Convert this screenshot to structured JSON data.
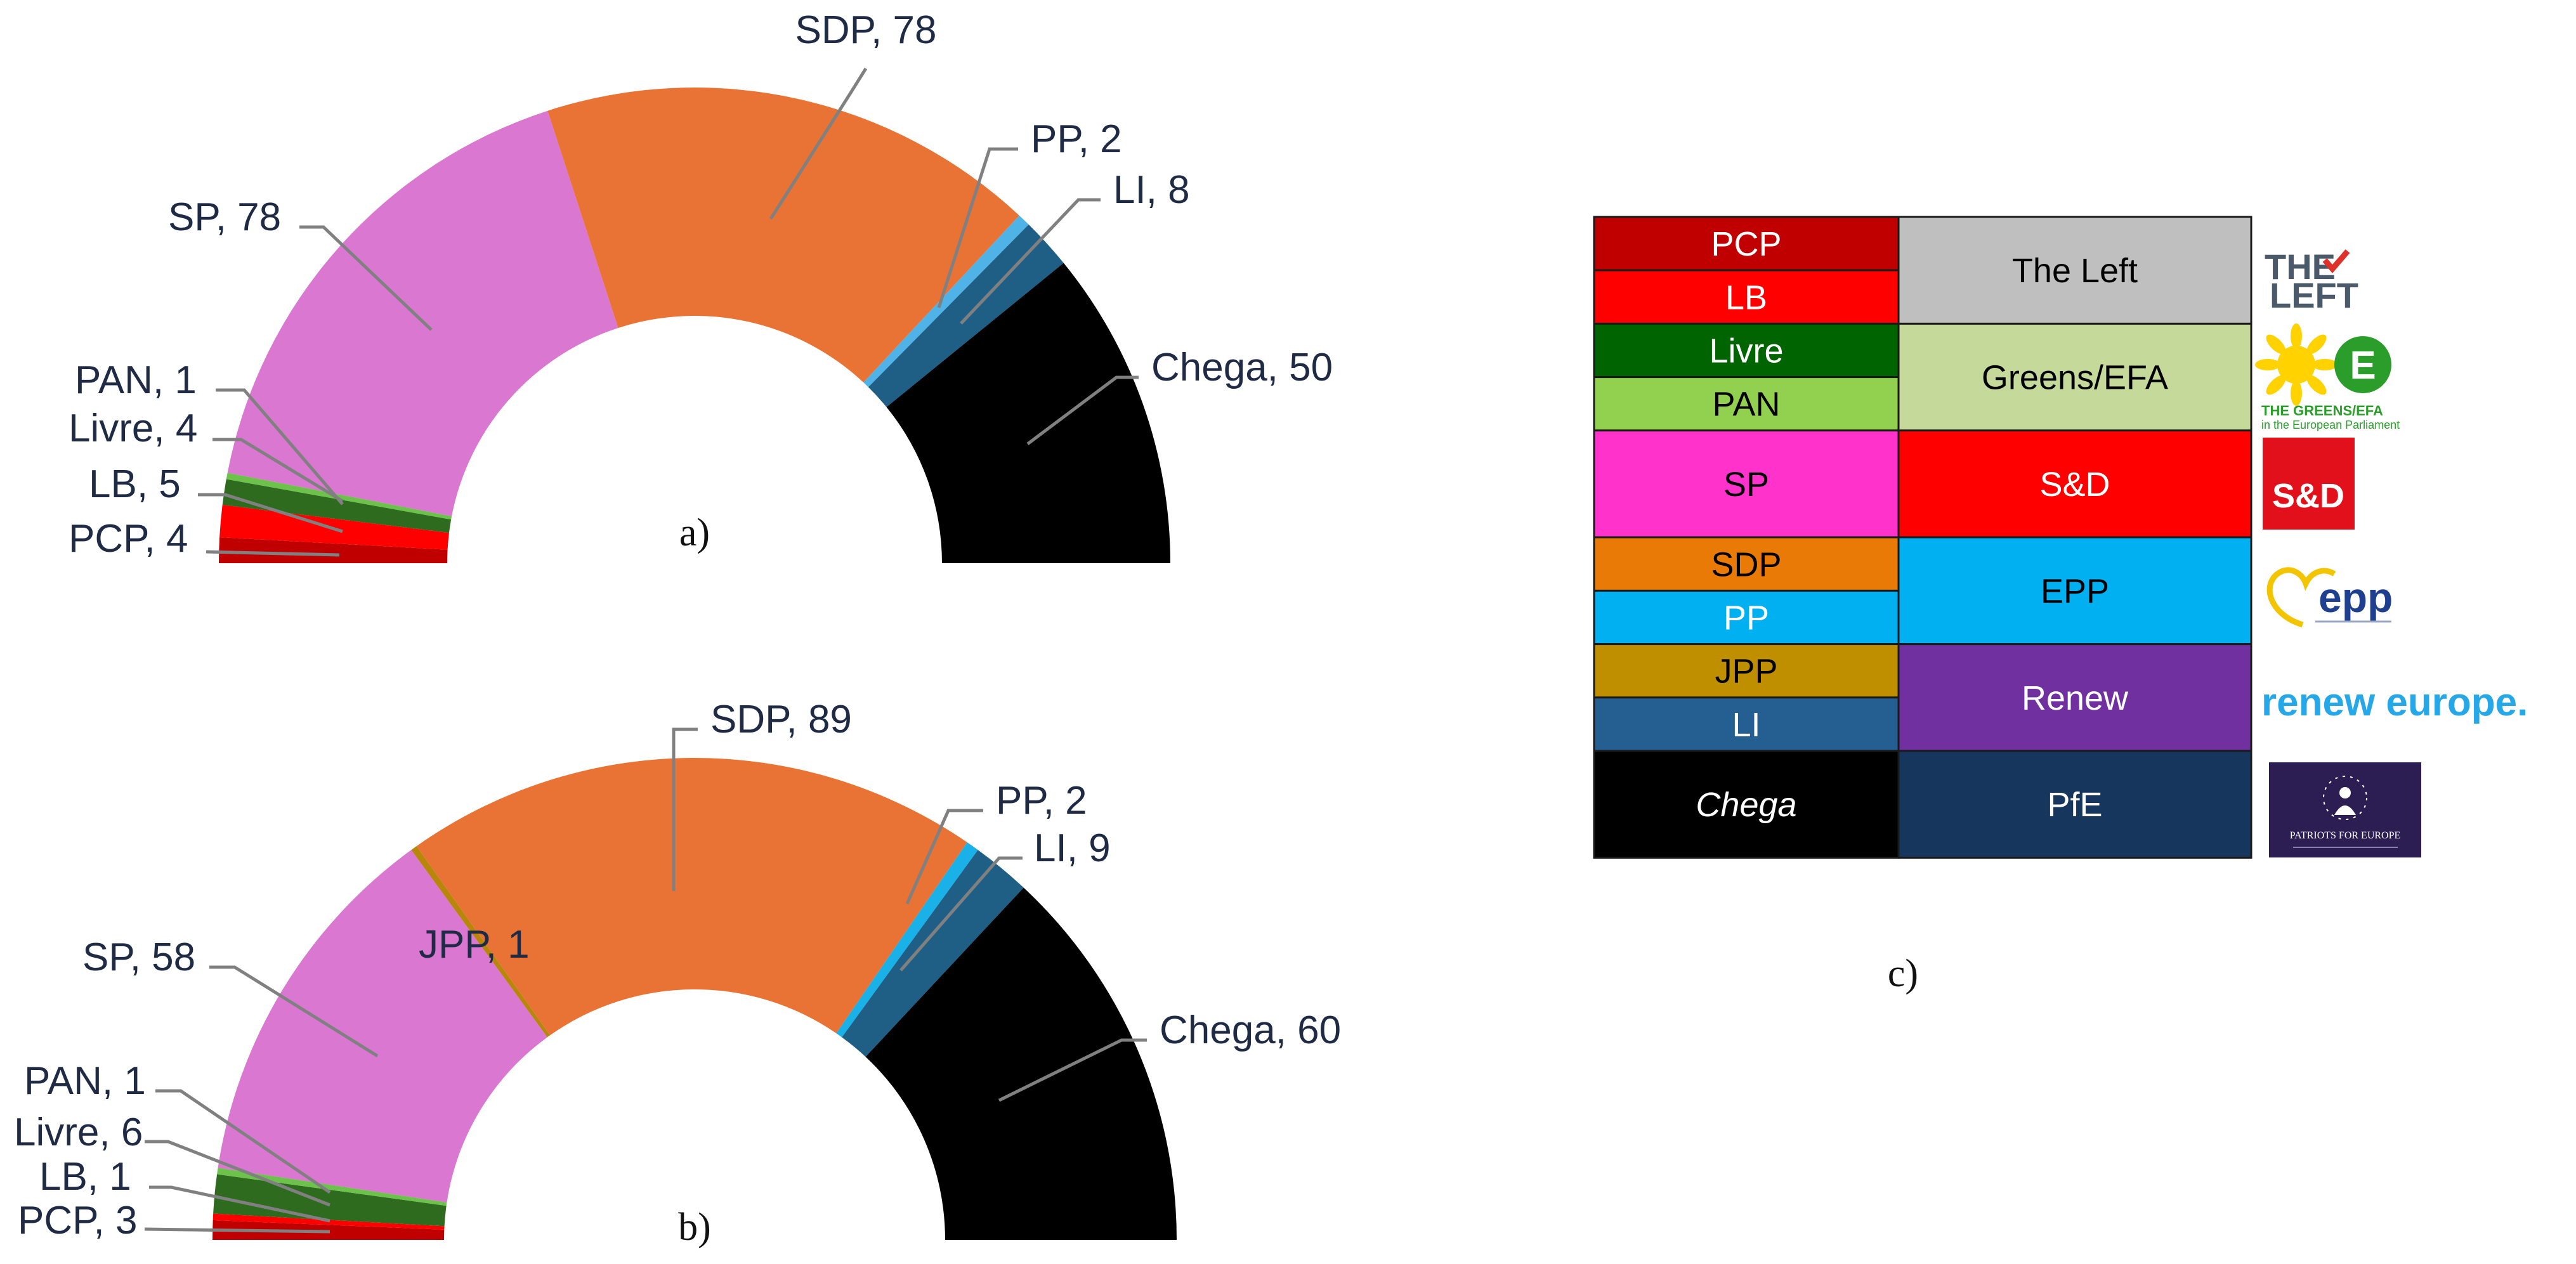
{
  "chart_data": [
    {
      "type": "pie",
      "variant": "half-donut",
      "panel_label": "a)",
      "slices": [
        {
          "name": "PCP",
          "value": 4,
          "color": "#c00000",
          "label": "PCP, 4"
        },
        {
          "name": "LB",
          "value": 5,
          "color": "#ff0000",
          "label": "LB, 5"
        },
        {
          "name": "Livre",
          "value": 4,
          "color": "#2e6b1f",
          "label": "Livre, 4"
        },
        {
          "name": "PAN",
          "value": 1,
          "color": "#6cc24a",
          "label": "PAN, 1"
        },
        {
          "name": "SP",
          "value": 78,
          "color": "#da77d0",
          "label": "SP, 78"
        },
        {
          "name": "SDP",
          "value": 78,
          "color": "#e97334",
          "label": "SDP, 78"
        },
        {
          "name": "PP",
          "value": 2,
          "color": "#4fb3e8",
          "label": "PP, 2"
        },
        {
          "name": "LI",
          "value": 8,
          "color": "#1f5f86",
          "label": "LI, 8"
        },
        {
          "name": "Chega",
          "value": 50,
          "color": "#000000",
          "label": "Chega, 50"
        }
      ]
    },
    {
      "type": "pie",
      "variant": "half-donut",
      "panel_label": "b)",
      "slices": [
        {
          "name": "PCP",
          "value": 3,
          "color": "#c00000",
          "label": "PCP, 3"
        },
        {
          "name": "LB",
          "value": 1,
          "color": "#ff0000",
          "label": "LB, 1"
        },
        {
          "name": "Livre",
          "value": 6,
          "color": "#2e6b1f",
          "label": "Livre, 6"
        },
        {
          "name": "PAN",
          "value": 1,
          "color": "#6cc24a",
          "label": "PAN, 1"
        },
        {
          "name": "SP",
          "value": 58,
          "color": "#da77d0",
          "label": "SP, 58"
        },
        {
          "name": "JPP",
          "value": 1,
          "color": "#b8860b",
          "label": "JPP, 1"
        },
        {
          "name": "SDP",
          "value": 89,
          "color": "#e97334",
          "label": "SDP, 89"
        },
        {
          "name": "PP",
          "value": 2,
          "color": "#1ab0e8",
          "label": "PP, 2"
        },
        {
          "name": "LI",
          "value": 9,
          "color": "#1f5f86",
          "label": "LI, 9"
        },
        {
          "name": "Chega",
          "value": 60,
          "color": "#000000",
          "label": "Chega, 60"
        }
      ]
    }
  ],
  "mapping_table": {
    "panel_label": "c)",
    "parties": [
      {
        "name": "PCP",
        "bg": "#c00000",
        "fg": "#ffffff"
      },
      {
        "name": "LB",
        "bg": "#ff0000",
        "fg": "#ffffff"
      },
      {
        "name": "Livre",
        "bg": "#006400",
        "fg": "#ffffff"
      },
      {
        "name": "PAN",
        "bg": "#92d050",
        "fg": "#000000"
      },
      {
        "name": "SP",
        "bg": "#ff33cc",
        "fg": "#000000"
      },
      {
        "name": "SDP",
        "bg": "#e97a06",
        "fg": "#000000"
      },
      {
        "name": "PP",
        "bg": "#00b0f0",
        "fg": "#ffffff"
      },
      {
        "name": "JPP",
        "bg": "#bf8f00",
        "fg": "#000000"
      },
      {
        "name": "LI",
        "bg": "#255e91",
        "fg": "#ffffff"
      },
      {
        "name": "Chega",
        "bg": "#000000",
        "fg": "#ffffff",
        "italic": true
      }
    ],
    "groups": [
      {
        "name": "The Left",
        "bg": "#bfbfbf",
        "fg": "#000000",
        "logo": "the-left-logo",
        "logo_text": [
          "THE",
          "LEFT"
        ]
      },
      {
        "name": "Greens/EFA",
        "bg": "#c5d99b",
        "fg": "#000000",
        "logo": "greens-efa-logo",
        "logo_text": [
          "THE GREENS/EFA",
          "in the European Parliament"
        ]
      },
      {
        "name": "S&D",
        "bg": "#ff0000",
        "fg": "#ffffff",
        "logo": "s-and-d-logo",
        "logo_text": [
          "S&D"
        ]
      },
      {
        "name": "EPP",
        "bg": "#00b0f0",
        "fg": "#000000",
        "logo": "epp-logo",
        "logo_text": [
          "epp"
        ]
      },
      {
        "name": "Renew",
        "bg": "#7030a0",
        "fg": "#ffffff",
        "logo": "renew-europe-logo",
        "logo_text": [
          "renew europe."
        ]
      },
      {
        "name": "PfE",
        "bg": "#17365d",
        "fg": "#ffffff",
        "logo": "patriots-for-europe-logo",
        "logo_text": [
          "PATRIOTS FOR EUROPE"
        ]
      }
    ]
  }
}
